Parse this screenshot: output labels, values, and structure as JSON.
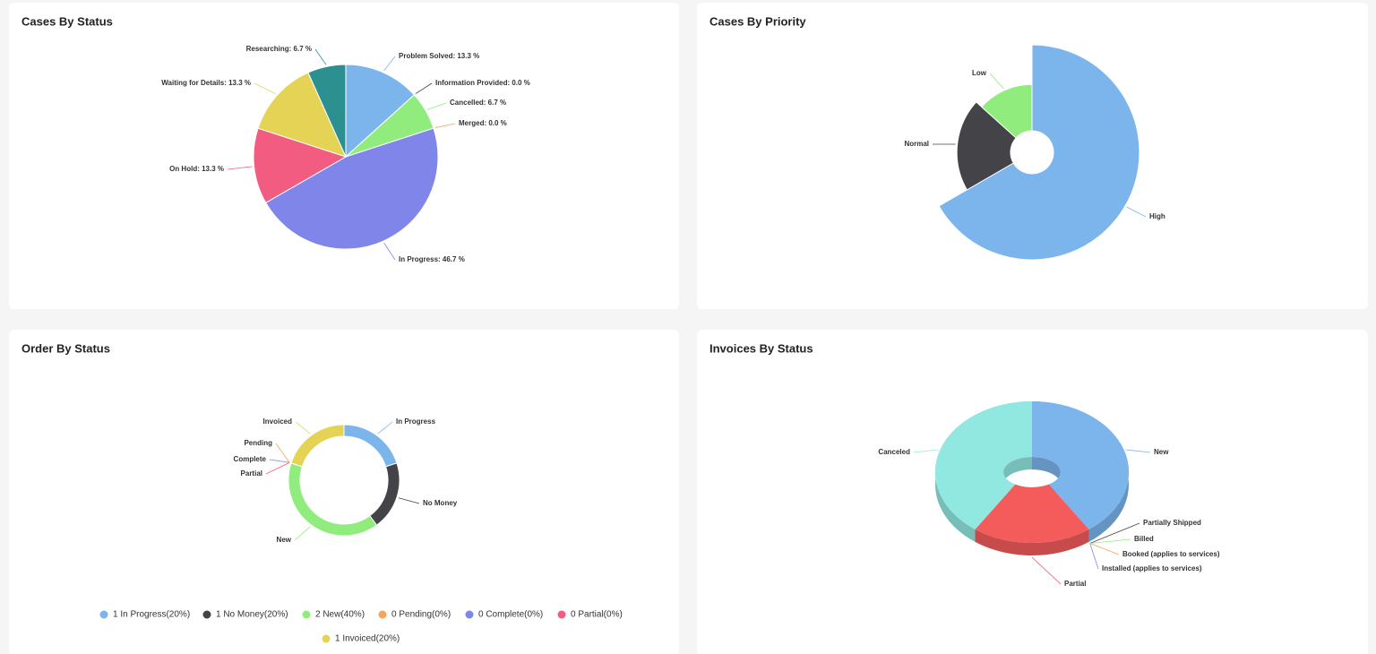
{
  "chart_data": [
    {
      "type": "pie",
      "title": "Cases By Status",
      "values": [
        13.3,
        0.0,
        6.7,
        0.0,
        46.7,
        13.3,
        13.3,
        6.7
      ],
      "value_labels": [
        "Problem Solved: 13.3 %",
        "Information Provided: 0.0 %",
        "Cancelled: 6.7 %",
        "Merged: 0.0 %",
        "In Progress: 46.7 %",
        "On Hold: 13.3 %",
        "Waiting for Details: 13.3 %",
        "Researching: 6.7 %"
      ],
      "colors": [
        "#7cb5ec",
        "#434348",
        "#90ed7d",
        "#f7a35c",
        "#8085e9",
        "#f15c80",
        "#e4d354",
        "#2b908f"
      ]
    },
    {
      "type": "variablepie",
      "title": "Cases By Priority",
      "categories": [
        "High",
        "Normal",
        "Low"
      ],
      "values": [
        10,
        3,
        2
      ],
      "colors": [
        "#7cb5ec",
        "#434348",
        "#90ed7d"
      ]
    },
    {
      "type": "donut",
      "title": "Order By Status",
      "categories": [
        "In Progress",
        "No Money",
        "New",
        "Pending",
        "Complete",
        "Partial",
        "Invoiced"
      ],
      "values": [
        1,
        1,
        2,
        0,
        0,
        0,
        1
      ],
      "legend_labels": [
        "1 In Progress(20%)",
        "1 No Money(20%)",
        "2 New(40%)",
        "0 Pending(0%)",
        "0 Complete(0%)",
        "0 Partial(0%)",
        "1 Invoiced(20%)"
      ],
      "colors": [
        "#7cb5ec",
        "#434348",
        "#90ed7d",
        "#f7a35c",
        "#8085e9",
        "#f15c80",
        "#e4d354"
      ]
    },
    {
      "type": "donut3d",
      "title": "Invoices By Status",
      "categories": [
        "New",
        "Partially Shipped",
        "Billed",
        "Booked (applies to services)",
        "Installed (applies to services)",
        "Partial",
        "Canceled"
      ],
      "values": [
        2,
        0,
        0,
        0,
        0,
        1,
        2
      ],
      "colors": [
        "#7cb5ec",
        "#434348",
        "#90ed7d",
        "#f7a35c",
        "#8085e9",
        "#f45b5b",
        "#91e8e1"
      ]
    }
  ]
}
